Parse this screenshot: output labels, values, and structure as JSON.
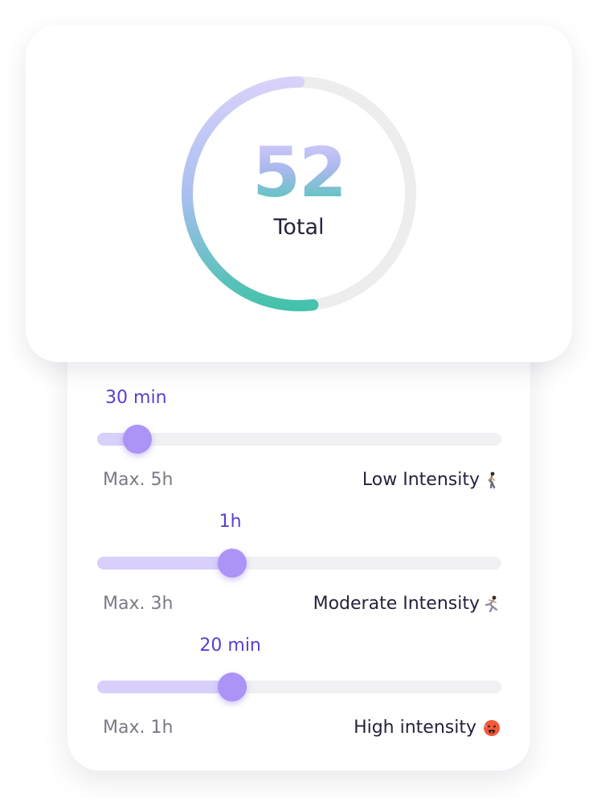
{
  "summary": {
    "value": "52",
    "label": "Total",
    "progress_fraction": 0.52,
    "colors": {
      "ring_start": "#ddd3fb",
      "ring_mid": "#a9bff0",
      "ring_end": "#3fc2a7",
      "track": "#ededed"
    }
  },
  "sliders": [
    {
      "value_label": "30 min",
      "max_label": "Max. 5h",
      "name": "Low Intensity",
      "icon": "walking-person-icon",
      "level_fraction": 0.1
    },
    {
      "value_label": "1h",
      "max_label": "Max. 3h",
      "name": "Moderate Intensity",
      "icon": "running-person-icon",
      "level_fraction": 0.3333
    },
    {
      "value_label": "20 min",
      "max_label": "Max. 1h",
      "name": "High intensity",
      "icon": "hot-face-icon",
      "level_fraction": 0.3333
    }
  ]
}
